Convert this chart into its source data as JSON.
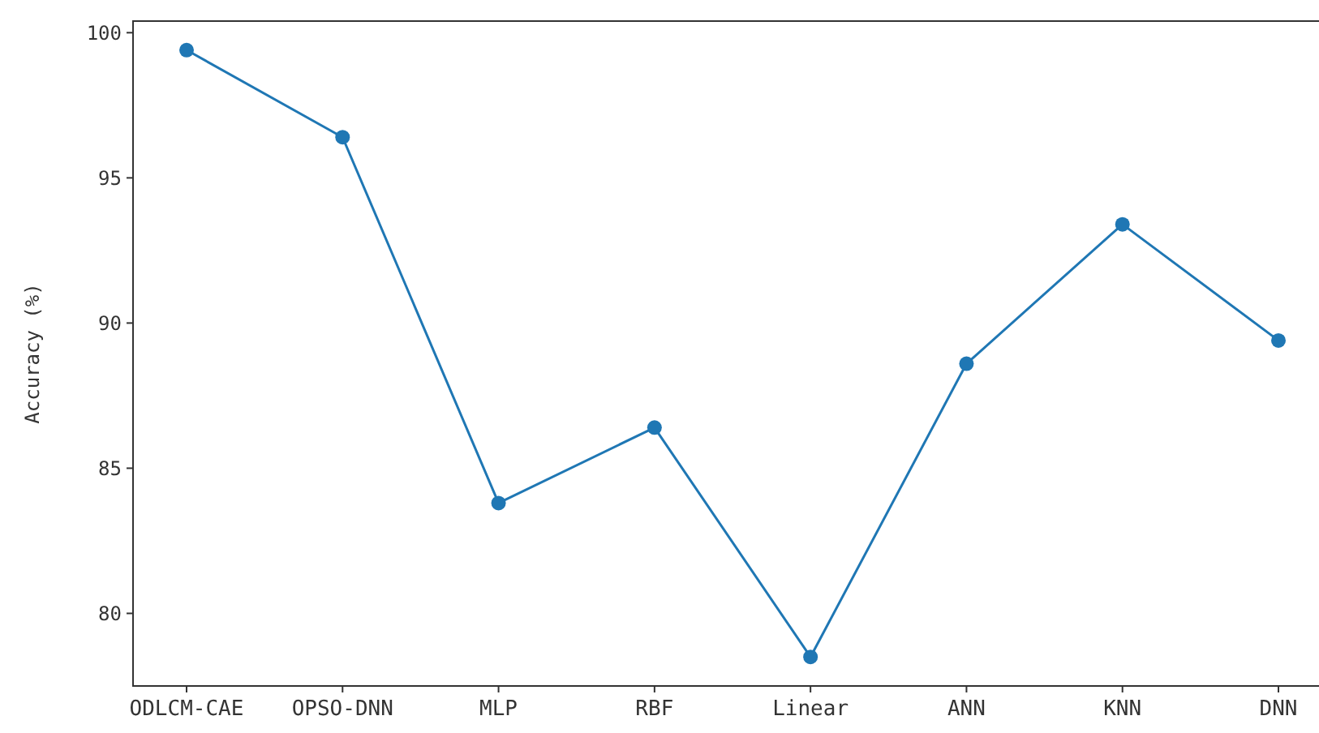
{
  "chart_data": {
    "type": "line",
    "ylabel": "Accuracy (%)",
    "categories": [
      "ODLCM-CAE",
      "OPSO-DNN",
      "MLP",
      "RBF",
      "Linear",
      "ANN",
      "KNN",
      "DNN"
    ],
    "series": [
      {
        "color": "#1f77b4",
        "values": [
          99.4,
          96.4,
          83.8,
          86.4,
          78.5,
          88.6,
          93.4,
          89.4
        ]
      }
    ],
    "ylim": [
      77.5,
      100.4
    ],
    "yticks": [
      80,
      85,
      90,
      95,
      100
    ],
    "grid": false,
    "marker": "circle",
    "line_style": "solid"
  }
}
